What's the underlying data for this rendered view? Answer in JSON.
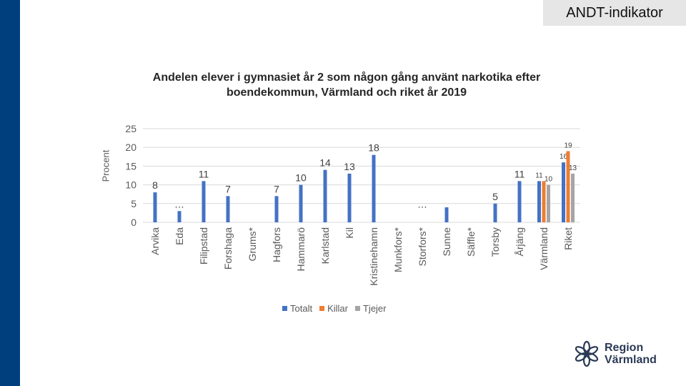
{
  "tag": "ANDT-indikator",
  "logo": {
    "line1": "Region",
    "line2": "Värmland"
  },
  "chart_data": {
    "type": "bar",
    "title": "Andelen elever i gymnasiet år 2 som någon gång använt narkotika efter boendekommun, Värmland och riket år 2019",
    "ylabel": "Procent",
    "xlabel": "",
    "ylim": [
      0,
      25
    ],
    "yticks": [
      0,
      5,
      10,
      15,
      20,
      25
    ],
    "categories": [
      "Arvika",
      "Eda",
      "Filipstad",
      "Forshaga",
      "Grums*",
      "Hagfors",
      "Hammarö",
      "Karlstad",
      "Kil",
      "Kristinehamn",
      "Munkfors*",
      "Storfors*",
      "Sunne",
      "Säffle*",
      "Torsby",
      "Årjäng",
      "Värmland",
      "Riket"
    ],
    "series": [
      {
        "name": "Totalt",
        "color": "#4472c4",
        "values": [
          8,
          3,
          11,
          7,
          null,
          7,
          10,
          14,
          13,
          18,
          null,
          null,
          4,
          null,
          5,
          11,
          11,
          16
        ],
        "labels": [
          "8",
          "…",
          "11",
          "7",
          "",
          "7",
          "10",
          "14",
          "13",
          "18",
          "",
          "…",
          "",
          "",
          "5",
          "11",
          "11",
          "16"
        ]
      },
      {
        "name": "Killar",
        "color": "#ed7d31",
        "values": [
          null,
          null,
          null,
          null,
          null,
          null,
          null,
          null,
          null,
          null,
          null,
          null,
          null,
          null,
          null,
          null,
          11,
          19
        ],
        "labels": [
          "",
          "",
          "",
          "",
          "",
          "",
          "",
          "",
          "",
          "",
          "",
          "",
          "",
          "",
          "",
          "",
          "",
          "19"
        ]
      },
      {
        "name": "Tjejer",
        "color": "#a5a5a5",
        "values": [
          null,
          null,
          null,
          null,
          null,
          null,
          null,
          null,
          null,
          null,
          null,
          null,
          null,
          null,
          null,
          null,
          10,
          13
        ],
        "labels": [
          "",
          "",
          "",
          "",
          "",
          "",
          "",
          "",
          "",
          "",
          "",
          "",
          "",
          "",
          "",
          "",
          "10",
          "13"
        ]
      }
    ],
    "grid": true,
    "legend": "bottom"
  }
}
